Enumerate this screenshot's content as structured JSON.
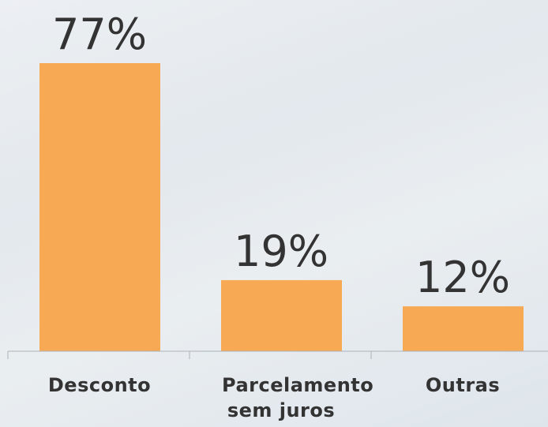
{
  "chart_data": {
    "type": "bar",
    "categories": [
      "Desconto",
      "Parcelamento sem juros",
      "Outras"
    ],
    "values": [
      77,
      19,
      12
    ],
    "value_labels": [
      "77%",
      "19%",
      "12%"
    ],
    "color": "#f8a954"
  }
}
